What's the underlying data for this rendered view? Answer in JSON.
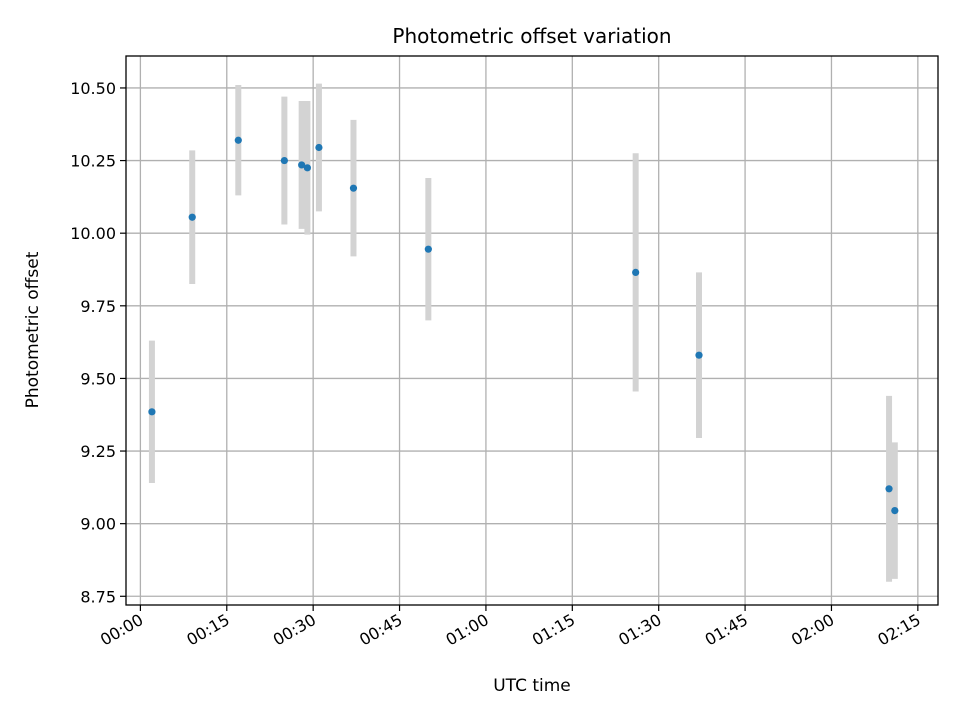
{
  "chart_data": {
    "type": "scatter",
    "title": "Photometric offset variation",
    "xlabel": "UTC time",
    "ylabel": "Photometric offset",
    "x_axis_kind": "time",
    "xlim": [
      "00:00",
      "02:15"
    ],
    "xlim_minutes": [
      -2.5,
      138.5
    ],
    "ylim": [
      8.72,
      10.61
    ],
    "x_ticks": [
      "00:00",
      "00:15",
      "00:30",
      "00:45",
      "01:00",
      "01:15",
      "01:30",
      "01:45",
      "02:00",
      "02:15"
    ],
    "y_ticks": [
      "8.75",
      "9.00",
      "9.25",
      "9.50",
      "9.75",
      "10.00",
      "10.25",
      "10.50"
    ],
    "grid": true,
    "point_color": "#1f77b4",
    "errorbar_color": "#d3d3d3",
    "series": [
      {
        "points": [
          {
            "time": "00:02",
            "y": 9.385,
            "yerr": 0.245
          },
          {
            "time": "00:09",
            "y": 10.055,
            "yerr": 0.23
          },
          {
            "time": "00:17",
            "y": 10.32,
            "yerr": 0.19
          },
          {
            "time": "00:25",
            "y": 10.25,
            "yerr": 0.22
          },
          {
            "time": "00:28",
            "y": 10.235,
            "yerr": 0.22
          },
          {
            "time": "00:29",
            "y": 10.225,
            "yerr": 0.23
          },
          {
            "time": "00:31",
            "y": 10.295,
            "yerr": 0.22
          },
          {
            "time": "00:37",
            "y": 10.155,
            "yerr": 0.235
          },
          {
            "time": "00:50",
            "y": 9.945,
            "yerr": 0.245
          },
          {
            "time": "01:26",
            "y": 9.865,
            "yerr": 0.41
          },
          {
            "time": "01:37",
            "y": 9.58,
            "yerr": 0.285
          },
          {
            "time": "02:10",
            "y": 9.12,
            "yerr": 0.32
          },
          {
            "time": "02:11",
            "y": 9.045,
            "yerr": 0.235
          }
        ]
      }
    ]
  }
}
